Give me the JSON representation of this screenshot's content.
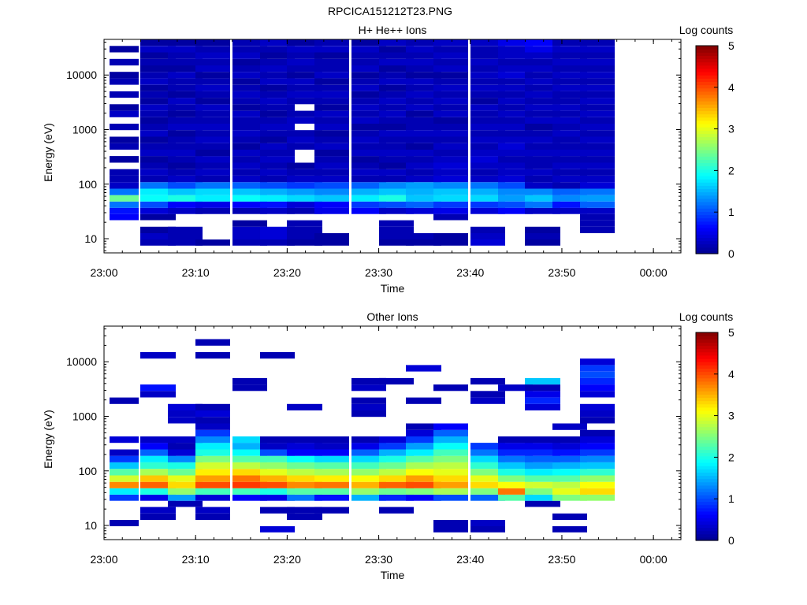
{
  "figure_title": "RPCICA151212T23.PNG",
  "colors": {
    "colormap": [
      "#00008f",
      "#0000ff",
      "#007fff",
      "#00ffff",
      "#7fff7f",
      "#ffff00",
      "#ff7f00",
      "#ff0000",
      "#800000"
    ],
    "axis": "#000000",
    "background": "#ffffff"
  },
  "chart_data": [
    {
      "type": "heatmap",
      "title": "H+ He++ Ions",
      "xlabel": "Time",
      "ylabel": "Energy (eV)",
      "colorbar_label": "Log counts",
      "colorbar_ticks": [
        "0",
        "1",
        "2",
        "3",
        "4",
        "5"
      ],
      "color_range": [
        0,
        5
      ],
      "x_ticks": [
        "23:00",
        "23:10",
        "23:20",
        "23:30",
        "23:40",
        "23:50",
        "00:00"
      ],
      "y_ticks": [
        "10",
        "100",
        "1000",
        "10000"
      ],
      "y_scale": "log",
      "ylim": [
        5.5,
        45000
      ],
      "xlim": [
        "23:00",
        "00:03"
      ],
      "time_bins_start": [
        "23:00",
        "23:04",
        "23:07",
        "23:10",
        "23:14",
        "23:17",
        "23:20",
        "23:23",
        "23:27",
        "23:30",
        "23:33",
        "23:36",
        "23:40",
        "23:43",
        "23:46",
        "23:49",
        "23:52"
      ],
      "time_bin_minutes": 3.2,
      "energy_bins_eV": [
        8.5,
        11.0,
        14.5,
        19.0,
        25.0,
        32.0,
        42.0,
        55.0,
        72.0,
        95.0,
        125.0,
        165.0,
        215.0,
        285.0,
        375.0,
        490.0,
        645.0,
        850.0,
        1120.0,
        1470.0,
        1930.0,
        2540.0,
        3340.0,
        4390.0,
        5770.0,
        7590.0,
        9980.0,
        13100.0,
        17200.0,
        22700.0,
        29800.0,
        39200.0
      ],
      "values": [
        [
          0,
          0,
          0,
          0,
          0.6,
          0.7,
          1.2,
          2.4,
          1.2,
          0.3,
          0.2,
          0.2,
          0,
          0.1,
          0,
          0.2,
          0.1,
          0,
          0.2,
          0,
          0.3,
          0.1,
          0,
          0.2,
          0,
          0.2,
          0.1,
          0,
          0.2,
          0,
          0.1,
          0
        ],
        [
          0.2,
          0.3,
          0.1,
          0,
          0.1,
          0.4,
          1.0,
          1.9,
          1.8,
          1.2,
          0.2,
          0.3,
          0.2,
          0.1,
          0.3,
          0.2,
          0.1,
          0.3,
          0.2,
          0.1,
          0.2,
          0.3,
          0.1,
          0.2,
          0.1,
          0.3,
          0.2,
          0.1,
          0.2,
          0.1,
          0.3,
          0.1
        ],
        [
          0.2,
          0.2,
          0.2,
          0,
          0,
          0.3,
          0.6,
          2.0,
          1.6,
          1.0,
          0.3,
          0.2,
          0.1,
          0.2,
          0.3,
          0.2,
          0.2,
          0.1,
          0.3,
          0.2,
          0.1,
          0.2,
          0.3,
          0.1,
          0.2,
          0.2,
          0.3,
          0.1,
          0.2,
          0.2,
          0.3,
          0.1
        ],
        [
          0.1,
          0,
          0,
          0,
          0,
          0.2,
          0.5,
          1.8,
          1.7,
          1.2,
          0.2,
          0.3,
          0.2,
          0.3,
          0.1,
          0.2,
          0.3,
          0.2,
          0.3,
          0.2,
          0.2,
          0.3,
          0.1,
          0.2,
          0.3,
          0.2,
          0.1,
          0.3,
          0.2,
          0.3,
          0.2,
          0.1
        ],
        [
          0.2,
          0.3,
          0.3,
          0.1,
          0,
          0.2,
          0.6,
          1.9,
          1.6,
          1.1,
          0.3,
          0.2,
          0.3,
          0.2,
          0.3,
          0.1,
          0.2,
          0.3,
          0.2,
          0.2,
          0.3,
          0.1,
          0.2,
          0.3,
          0.2,
          0.1,
          0.3,
          0.2,
          0.1,
          0.3,
          0.2,
          0.2
        ],
        [
          0.2,
          0.4,
          0.4,
          0,
          0,
          0.3,
          0.7,
          1.8,
          1.5,
          1.0,
          0.2,
          0.3,
          0.2,
          0.3,
          0.2,
          0.3,
          0.1,
          0.2,
          0.3,
          0.2,
          0.1,
          0.2,
          0.3,
          0.2,
          0.1,
          0.3,
          0.2,
          0.3,
          0.2,
          0.1,
          0.2,
          0.3
        ],
        [
          0.1,
          0.2,
          0.2,
          0.2,
          0,
          0.2,
          0.4,
          1.7,
          1.4,
          0.9,
          0.3,
          0.2,
          0.1,
          0,
          0,
          0.2,
          0.3,
          0.2,
          0,
          0.3,
          0.2,
          0,
          0.2,
          0.3,
          0.2,
          0.3,
          0.1,
          0.2,
          0.3,
          0.2,
          0.3,
          0.1
        ],
        [
          0.1,
          0.1,
          0,
          0,
          0,
          0.5,
          0.6,
          1.6,
          1.3,
          1.0,
          0.3,
          0.2,
          0.3,
          0.2,
          0.1,
          0.3,
          0.2,
          0.1,
          0.3,
          0.2,
          0.3,
          0.1,
          0.2,
          0.3,
          0.2,
          0.1,
          0.3,
          0.2,
          0.2,
          0.1,
          0.3,
          0.2
        ],
        [
          0,
          0,
          0,
          0,
          0,
          0.6,
          0.9,
          1.8,
          1.5,
          1.1,
          0.2,
          0.3,
          0.2,
          0.1,
          0.3,
          0.2,
          0.3,
          0.2,
          0.1,
          0.3,
          0.2,
          0.3,
          0.2,
          0.1,
          0.3,
          0.2,
          0.1,
          0.3,
          0.2,
          0.2,
          0.3,
          0.1
        ],
        [
          0.1,
          0.2,
          0.2,
          0.2,
          0,
          0.3,
          1.0,
          2.0,
          1.6,
          1.3,
          0.2,
          0.3,
          0.1,
          0.2,
          0.3,
          0.2,
          0.2,
          0.3,
          0.1,
          0.2,
          0.3,
          0.2,
          0.3,
          0.2,
          0.1,
          0.3,
          0.2,
          0.1,
          0.3,
          0.2,
          0.1,
          0.3
        ],
        [
          0.1,
          0.2,
          0,
          0,
          0,
          0.4,
          1.1,
          1.6,
          1.5,
          1.4,
          0.3,
          0.2,
          0.3,
          0.2,
          0.3,
          0.1,
          0.2,
          0.3,
          0.2,
          0.2,
          0.1,
          0.3,
          0.2,
          0.3,
          0.2,
          0.3,
          0.1,
          0.2,
          0.3,
          0.2,
          0.3,
          0.2
        ],
        [
          0.1,
          0.1,
          0,
          0,
          0.2,
          0.5,
          0.9,
          1.7,
          1.6,
          1.3,
          0.4,
          0.3,
          0.4,
          0.3,
          0.2,
          0.3,
          0.2,
          0.3,
          0.2,
          0.1,
          0.3,
          0.2,
          0.3,
          0.2,
          0.3,
          0.2,
          0.1,
          0.3,
          0.2,
          0.3,
          0.2,
          0.3
        ],
        [
          0.4,
          0.3,
          0.2,
          0,
          0,
          0.4,
          0.9,
          1.7,
          1.5,
          1.2,
          0.3,
          0.2,
          0.3,
          0.4,
          0.3,
          0.2,
          0.3,
          0.2,
          0.3,
          0.2,
          0.2,
          0.3,
          0.1,
          0.2,
          0.3,
          0.2,
          0.3,
          0.2,
          0.3,
          0.2,
          0.2,
          0.3
        ],
        [
          0,
          0,
          0,
          0,
          0,
          0.6,
          1.0,
          1.4,
          1.3,
          1.0,
          0.4,
          0.3,
          0.3,
          0.2,
          0.3,
          0.4,
          0.3,
          0.2,
          0.3,
          0.2,
          0.3,
          0.2,
          0.3,
          0.2,
          0.3,
          0.2,
          0.4,
          0.3,
          0.2,
          0.3,
          0.3,
          0.5
        ],
        [
          0.1,
          0.2,
          0.1,
          0,
          0,
          0.3,
          1.2,
          1.6,
          1.3,
          0.3,
          0.2,
          0.3,
          0.2,
          0.2,
          0.3,
          0.2,
          0.3,
          0.2,
          0.1,
          0.3,
          0.2,
          0.3,
          0.2,
          0.3,
          0.2,
          0.3,
          0.2,
          0.3,
          0.2,
          0.3,
          0.5,
          0.6
        ],
        [
          0,
          0,
          0,
          0,
          0,
          0.3,
          0.7,
          1.3,
          1.1,
          0.2,
          0.3,
          0.2,
          0.3,
          0.2,
          0.3,
          0.2,
          0.2,
          0.3,
          0.2,
          0.3,
          0.2,
          0.3,
          0.2,
          0.2,
          0.3,
          0.2,
          0.3,
          0.2,
          0.3,
          0.2,
          0.3,
          0.2
        ],
        [
          0,
          0,
          0.2,
          0.2,
          0.2,
          0.3,
          1.1,
          1.4,
          1.2,
          0.4,
          0.3,
          0.2,
          0.3,
          0.2,
          0.3,
          0.2,
          0.3,
          0.2,
          0.3,
          0.2,
          0.3,
          0.2,
          0.3,
          0.2,
          0.3,
          0.2,
          0.3,
          0.2,
          0.3,
          0.2,
          0.3,
          0.2
        ]
      ]
    },
    {
      "type": "heatmap",
      "title": "Other Ions",
      "xlabel": "Time",
      "ylabel": "Energy (eV)",
      "colorbar_label": "Log counts",
      "colorbar_ticks": [
        "0",
        "1",
        "2",
        "3",
        "4",
        "5"
      ],
      "color_range": [
        0,
        5
      ],
      "x_ticks": [
        "23:00",
        "23:10",
        "23:20",
        "23:30",
        "23:40",
        "23:50",
        "00:00"
      ],
      "y_ticks": [
        "10",
        "100",
        "1000",
        "10000"
      ],
      "y_scale": "log",
      "ylim": [
        5.5,
        45000
      ],
      "xlim": [
        "23:00",
        "00:03"
      ],
      "time_bins_start": [
        "23:00",
        "23:04",
        "23:07",
        "23:10",
        "23:14",
        "23:17",
        "23:20",
        "23:23",
        "23:27",
        "23:30",
        "23:33",
        "23:36",
        "23:40",
        "23:43",
        "23:46",
        "23:49",
        "23:52"
      ],
      "time_bin_minutes": 3.2,
      "energy_bins_eV": [
        8.5,
        11.0,
        14.5,
        19.0,
        25.0,
        32.0,
        42.0,
        55.0,
        72.0,
        95.0,
        125.0,
        165.0,
        215.0,
        285.0,
        375.0,
        490.0,
        645.0,
        850.0,
        1120.0,
        1470.0,
        1930.0,
        2540.0,
        3340.0,
        4390.0,
        5770.0,
        7590.0,
        9980.0,
        13100.0,
        17200.0,
        22700.0,
        29800.0,
        39200.0
      ],
      "values": [
        [
          0,
          0.2,
          0,
          0,
          0,
          0.9,
          1.8,
          3.7,
          2.9,
          2.3,
          1.6,
          0.9,
          0.3,
          0,
          0.4,
          0,
          0,
          0,
          0,
          0,
          0.2,
          0,
          0,
          0,
          0,
          0,
          0,
          0,
          0,
          0,
          0,
          0
        ],
        [
          0,
          0,
          0.2,
          0.3,
          0,
          0.5,
          2.0,
          3.9,
          3.4,
          2.7,
          2.1,
          1.8,
          1.1,
          0.6,
          0.3,
          0,
          0,
          0,
          0,
          0,
          0,
          0.3,
          0.7,
          0,
          0,
          0,
          0,
          0.3,
          0,
          0,
          0,
          0
        ],
        [
          0,
          0,
          0,
          0,
          0.2,
          1.4,
          2.6,
          3.3,
          3.0,
          2.4,
          2.0,
          1.3,
          0.4,
          0.2,
          0.3,
          0,
          0,
          0.3,
          0.3,
          0.4,
          0,
          0,
          0,
          0,
          0,
          0,
          0,
          0,
          0,
          0,
          0,
          0
        ],
        [
          0,
          0,
          0.2,
          0.3,
          0,
          0.4,
          2.2,
          4.0,
          3.6,
          3.2,
          2.9,
          2.5,
          2.0,
          1.8,
          1.3,
          0.9,
          0.3,
          0.2,
          0.4,
          0.2,
          0,
          0,
          0,
          0,
          0,
          0,
          0,
          0.2,
          0,
          0.2,
          0,
          0
        ],
        [
          0,
          0,
          0,
          0,
          0,
          0.6,
          2.2,
          4.1,
          3.8,
          3.3,
          2.8,
          2.3,
          1.9,
          1.5,
          1.7,
          0,
          0,
          0,
          0,
          0,
          0,
          0,
          0.2,
          0.2,
          0,
          0,
          0,
          0,
          0,
          0,
          0,
          0
        ],
        [
          0.4,
          0,
          0,
          0.2,
          0,
          0.5,
          2.0,
          4.0,
          3.5,
          3.0,
          2.6,
          2.2,
          1.0,
          0.3,
          0.2,
          0,
          0,
          0,
          0,
          0,
          0,
          0,
          0,
          0,
          0,
          0,
          0,
          0.2,
          0,
          0,
          0,
          0
        ],
        [
          0,
          0,
          0.2,
          0.2,
          0,
          1.2,
          2.3,
          3.7,
          3.3,
          2.8,
          2.4,
          1.9,
          0.6,
          0.4,
          0.2,
          0,
          0,
          0,
          0,
          0.3,
          0,
          0,
          0,
          0,
          0,
          0,
          0,
          0,
          0,
          0,
          0,
          0
        ],
        [
          0,
          0,
          0,
          0.2,
          0,
          0.7,
          2.3,
          3.8,
          3.2,
          2.7,
          2.3,
          1.7,
          0.6,
          0.3,
          0.2,
          0,
          0,
          0,
          0,
          0,
          0,
          0,
          0,
          0,
          0,
          0,
          0,
          0,
          0,
          0,
          0,
          0
        ],
        [
          0,
          0,
          0,
          0,
          0,
          1.5,
          2.6,
          3.5,
          3.1,
          2.6,
          2.2,
          1.7,
          1.1,
          0.5,
          0.2,
          0,
          0,
          0,
          0.2,
          0.3,
          0.2,
          0,
          0.3,
          0.2,
          0,
          0,
          0,
          0,
          0,
          0,
          0,
          0
        ],
        [
          0,
          0,
          0,
          0.2,
          0,
          0.8,
          2.4,
          3.9,
          3.3,
          2.8,
          2.4,
          2.0,
          1.5,
          0.9,
          0.4,
          0,
          0,
          0,
          0,
          0,
          0,
          0,
          0,
          0.2,
          0,
          0,
          0,
          0,
          0,
          0,
          0,
          0
        ],
        [
          0,
          0,
          0,
          0,
          0,
          0.6,
          2.5,
          4.0,
          3.6,
          3.1,
          2.7,
          2.3,
          1.8,
          1.4,
          0.9,
          0.4,
          0.2,
          0,
          0,
          0,
          0.2,
          0,
          0,
          0,
          0,
          0.4,
          0,
          0,
          0,
          0,
          0,
          0
        ],
        [
          0.2,
          0.2,
          0,
          0,
          0,
          1.0,
          2.7,
          3.6,
          3.3,
          3.0,
          2.8,
          2.5,
          2.2,
          1.9,
          1.5,
          1.1,
          0.6,
          0,
          0,
          0,
          0,
          0,
          0.2,
          0,
          0,
          0,
          0,
          0,
          0,
          0,
          0,
          0
        ],
        [
          0.2,
          0.3,
          0,
          0,
          0,
          1.1,
          2.5,
          3.3,
          3.0,
          2.5,
          2.1,
          1.7,
          1.2,
          0.9,
          0,
          0,
          0,
          0,
          0,
          0,
          0.3,
          0.2,
          0,
          0.2,
          0,
          0,
          0,
          0,
          0,
          0,
          0,
          0
        ],
        [
          0,
          0,
          0,
          0,
          0,
          2.3,
          3.8,
          3.1,
          2.5,
          2.0,
          1.6,
          1.2,
          0.8,
          0.5,
          0.2,
          0,
          0,
          0,
          0,
          0,
          0,
          0,
          0.3,
          0,
          0,
          0,
          0,
          0,
          0,
          0,
          0,
          0
        ],
        [
          0,
          0,
          0,
          0,
          0.2,
          1.7,
          2.5,
          2.9,
          2.3,
          1.8,
          1.4,
          1.1,
          0.8,
          0.5,
          0.2,
          0,
          0,
          0,
          0,
          0.4,
          0.8,
          0.5,
          0.2,
          1.6,
          0,
          0,
          0,
          0,
          0,
          0,
          0,
          0
        ],
        [
          0.2,
          0,
          0.2,
          0,
          0,
          2.5,
          3.0,
          2.8,
          2.3,
          1.9,
          1.5,
          1.1,
          0.7,
          0.4,
          0.2,
          0,
          0.3,
          0,
          0,
          0,
          0,
          0,
          0,
          0,
          0,
          0,
          0,
          0,
          0,
          0,
          0,
          0
        ],
        [
          0,
          0,
          0,
          0,
          0,
          2.6,
          3.3,
          3.1,
          2.6,
          2.1,
          1.6,
          1.3,
          0.9,
          0.6,
          0.4,
          0.2,
          0,
          0.2,
          0.3,
          0.4,
          0,
          0.4,
          0.6,
          0.8,
          1.0,
          0.9,
          0.4,
          0,
          0,
          0,
          0,
          0
        ]
      ]
    }
  ]
}
